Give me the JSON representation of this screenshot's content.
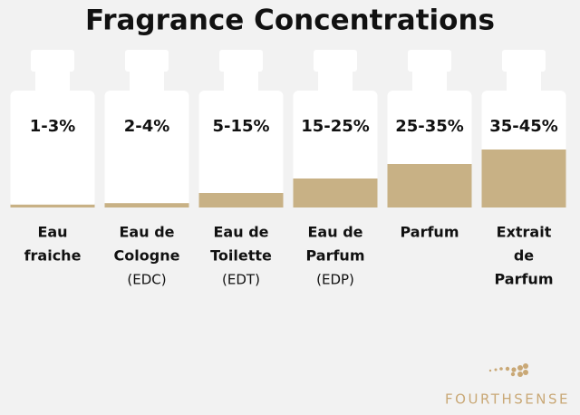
{
  "title": "Fragrance Concentrations",
  "items": [
    {
      "label": "1-3%",
      "name": [
        "Eau",
        "fraiche"
      ]
    },
    {
      "label": "2-4%",
      "name": [
        "Eau de",
        "Cologne"
      ],
      "note": "(EDC)"
    },
    {
      "label": "5-15%",
      "name": [
        "Eau de",
        "Toilette"
      ],
      "note": "(EDT)"
    },
    {
      "label": "15-25%",
      "name": [
        "Eau de",
        "Parfum"
      ],
      "note": "(EDP)"
    },
    {
      "label": "25-35%",
      "name": [
        "Parfum"
      ]
    },
    {
      "label": "35-45%",
      "name": [
        "Extrait",
        "de",
        "Parfum"
      ]
    }
  ],
  "logo": "FOURTHSENSE"
}
